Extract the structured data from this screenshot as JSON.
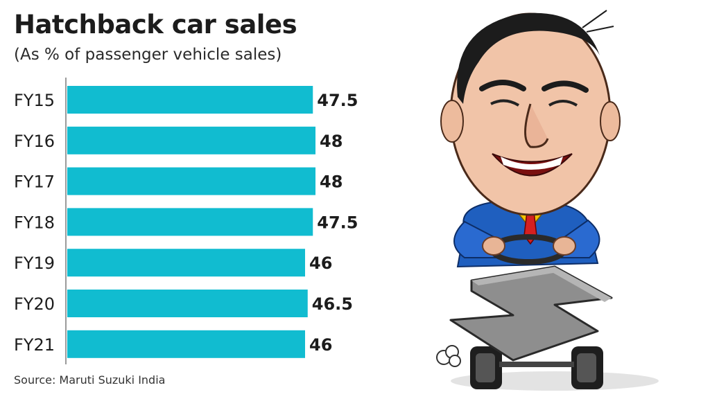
{
  "chart_data": {
    "type": "bar",
    "orientation": "horizontal",
    "title": "Hatchback car sales",
    "subtitle": "(As % of passenger vehicle sales)",
    "categories": [
      "FY15",
      "FY16",
      "FY17",
      "FY18",
      "FY19",
      "FY20",
      "FY21"
    ],
    "values": [
      47.5,
      48,
      48,
      47.5,
      46,
      46.5,
      46
    ],
    "value_labels": [
      "47.5",
      "48",
      "48",
      "47.5",
      "46",
      "46.5",
      "46"
    ],
    "xlim": [
      0,
      48
    ],
    "grid": false,
    "legend": "none",
    "source": "Source: Maruti Suzuki India"
  },
  "colors": {
    "bar": "#11bcd0",
    "axis": "#9a9a9a",
    "text": "#1c1c1c"
  },
  "illustration": {
    "subject": "caricature of a smiling man in a blue suit driving a go-kart",
    "logo": "Suzuki S logo"
  }
}
